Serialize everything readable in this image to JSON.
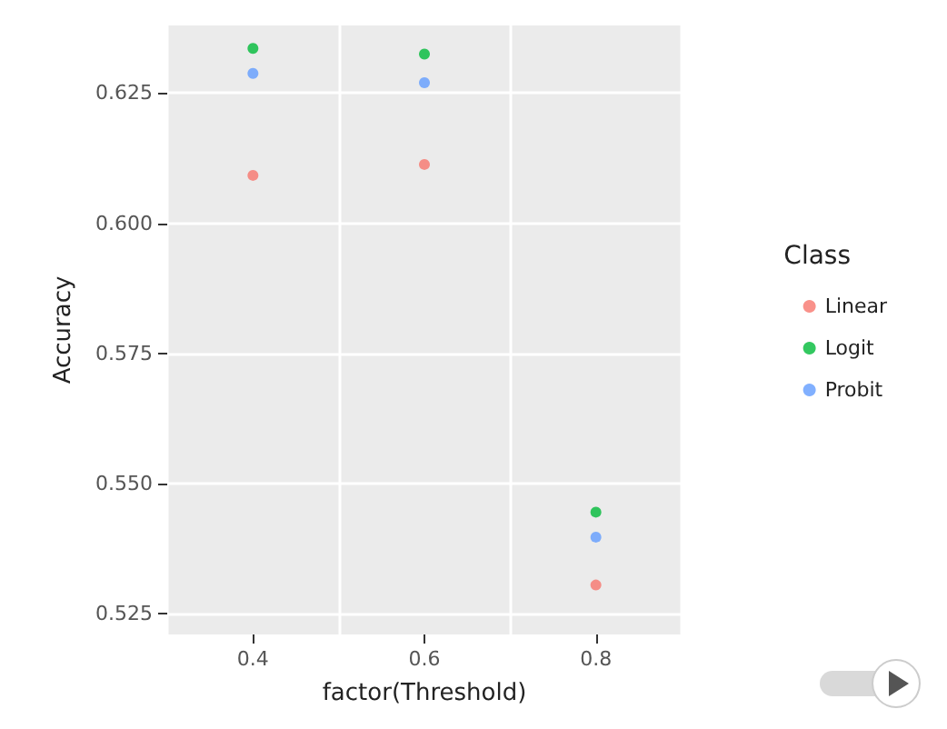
{
  "chart_data": {
    "type": "scatter",
    "xlabel": "factor(Threshold)",
    "ylabel": "Accuracy",
    "legend_title": "Class",
    "categories": [
      "0.4",
      "0.6",
      "0.8"
    ],
    "series": [
      {
        "name": "Linear",
        "color": "#f8766d",
        "values": [
          0.6092,
          0.6113,
          0.5305
        ]
      },
      {
        "name": "Logit",
        "color": "#00ba38",
        "values": [
          0.6336,
          0.6325,
          0.5445
        ]
      },
      {
        "name": "Probit",
        "color": "#619cff",
        "values": [
          0.6288,
          0.627,
          0.5397
        ]
      }
    ],
    "ylim": [
      0.521,
      0.638
    ],
    "yticks": [
      0.525,
      {
        "value": 0.55,
        "label": "0.550"
      },
      0.575,
      {
        "value": 0.6,
        "label": "0.600"
      },
      0.625
    ],
    "grid": true,
    "legend": "right",
    "marker": "circle"
  }
}
